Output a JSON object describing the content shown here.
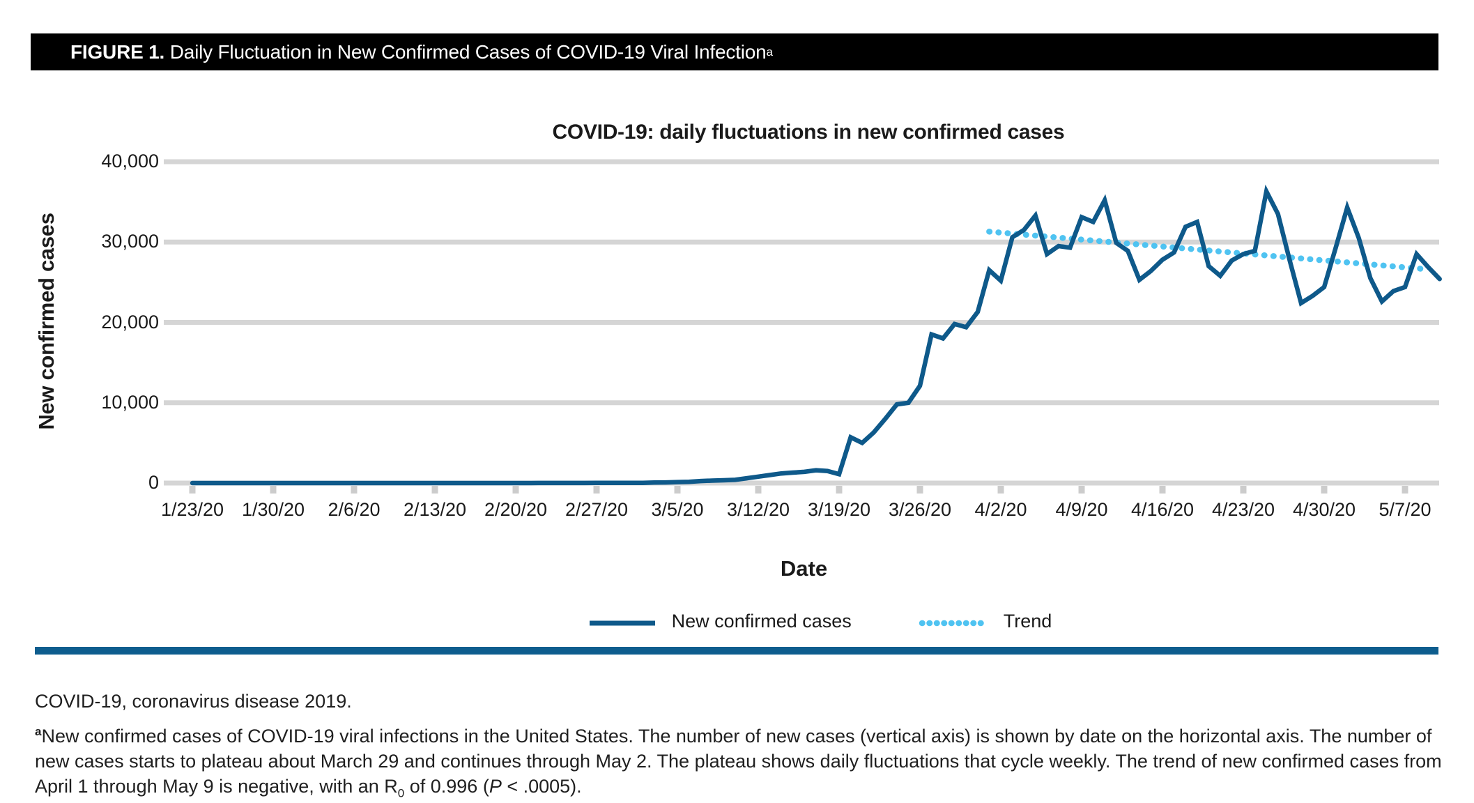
{
  "colors": {
    "line": "#0e598a",
    "trend": "#4fc3f1",
    "grid": "#d5d5d5",
    "tick_stub": "#cccccc",
    "header_bg": "#000000",
    "header_text": "#ffffff",
    "rule": "#0e5d8e"
  },
  "figure_bar": {
    "label": "FIGURE 1.",
    "title": " Daily Fluctuation in New Confirmed Cases of COVID-19 Viral Infection",
    "superscript": "a"
  },
  "chart": {
    "title": "COVID-19: daily fluctuations in new confirmed cases",
    "y_axis_label": "New confirmed cases",
    "x_axis_label": "Date",
    "legend": [
      {
        "label": "New confirmed cases",
        "style": "solid"
      },
      {
        "label": "Trend",
        "style": "dotted"
      }
    ]
  },
  "chart_data": {
    "type": "line",
    "title": "COVID-19: daily fluctuations in new confirmed cases",
    "xlabel": "Date",
    "ylabel": "New confirmed cases",
    "ylim": [
      0,
      40000
    ],
    "grid": "horizontal",
    "legend_position": "bottom",
    "y_tick_values": [
      0,
      10000,
      20000,
      30000,
      40000
    ],
    "y_tick_labels": [
      "0",
      "10,000",
      "20,000",
      "30,000",
      "40,000"
    ],
    "x_start_date": "1/23/20",
    "x_end_date": "5/10/20",
    "x_tick_interval_days": 7,
    "x_tick_labels": [
      "1/23/20",
      "1/30/20",
      "2/6/20",
      "2/13/20",
      "2/20/20",
      "2/27/20",
      "3/5/20",
      "3/12/20",
      "3/19/20",
      "3/26/20",
      "4/2/20",
      "4/9/20",
      "4/16/20",
      "4/23/20",
      "4/30/20",
      "5/7/20"
    ],
    "series": [
      {
        "name": "New confirmed cases",
        "style": "solid",
        "values": [
          0,
          0,
          0,
          0,
          0,
          1,
          1,
          2,
          2,
          1,
          0,
          2,
          1,
          1,
          1,
          0,
          0,
          1,
          2,
          1,
          3,
          1,
          2,
          0,
          0,
          3,
          2,
          1,
          4,
          2,
          6,
          5,
          8,
          10,
          12,
          18,
          16,
          24,
          30,
          25,
          60,
          80,
          120,
          150,
          250,
          300,
          350,
          400,
          600,
          800,
          1000,
          1200,
          1300,
          1400,
          1600,
          1500,
          1100,
          5700,
          5000,
          6300,
          8000,
          9800,
          10000,
          12100,
          18500,
          18000,
          19800,
          19400,
          21300,
          26500,
          25200,
          30600,
          31500,
          33300,
          28500,
          29500,
          29300,
          33100,
          32500,
          35200,
          29900,
          28900,
          25300,
          26400,
          27800,
          28700,
          31900,
          32500,
          27000,
          25800,
          27700,
          28500,
          28900,
          36300,
          33500,
          27800,
          22400,
          23300,
          24400,
          29300,
          34300,
          30500,
          25500,
          22600,
          23900,
          24400,
          28500,
          26900,
          25400
        ]
      },
      {
        "name": "Trend",
        "style": "dotted",
        "trend_start_date": "4/1/20",
        "trend_end_date": "5/9/20",
        "start_index": 69,
        "start_value": 31300,
        "end_index": 107,
        "end_value": 26600
      }
    ]
  },
  "footer": {
    "abbreviation_line": "COVID-19, coronavirus disease 2019.",
    "footnote_marker": "a",
    "footnote_text_1": "New confirmed cases of COVID-19 viral infections in the United States. The number of new cases (vertical axis) is shown by date on the horizontal axis. The number of new cases starts to plateau about March 29 and continues through May 2. The plateau shows daily fluctuations that cycle weekly. The trend of new confirmed cases from April 1 through May 9 is negative, with an R",
    "footnote_sub": "0",
    "footnote_text_2": " of 0.996 (",
    "footnote_italic": "P",
    "footnote_text_3": " < .0005)."
  }
}
